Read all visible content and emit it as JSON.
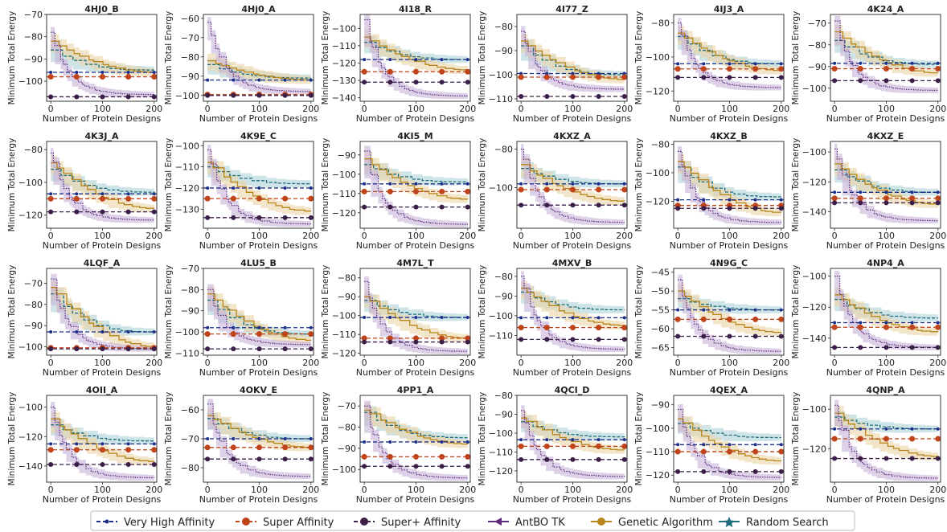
{
  "figure": {
    "xlabel": "Number of Protein Designs",
    "ylabel": "Minimum Total Energy",
    "xticks": [
      0,
      100,
      200
    ],
    "xlim": [
      -8,
      205
    ],
    "colors": {
      "very_high": "#1a2f8a",
      "super": "#c0441b",
      "super_plus": "#3b1f48",
      "antbo": "#5e2a7e",
      "antbo_band": "#c7b3d9",
      "ga": "#b8861b",
      "ga_band": "#e9d3a6",
      "rs": "#1f6d7a",
      "rs_band": "#a7cdd3"
    },
    "legend": [
      {
        "label": "Very High Affinity",
        "key": "very_high",
        "style": "dash-dot"
      },
      {
        "label": "Super Affinity",
        "key": "super",
        "style": "dash-circle"
      },
      {
        "label": "Super+ Affinity",
        "key": "super_plus",
        "style": "dash-hex"
      },
      {
        "label": "AntBO TK",
        "key": "antbo",
        "style": "tri"
      },
      {
        "label": "Genetic Algorithm",
        "key": "ga",
        "style": "circle"
      },
      {
        "label": "Random Search",
        "key": "rs",
        "style": "star"
      }
    ]
  },
  "chart_data": [
    {
      "type": "line",
      "title": "4HJ0_B",
      "ylim": [
        -109,
        -70
      ],
      "yticks": [
        -70,
        -80,
        -90,
        -100
      ],
      "very_high": -96,
      "super": -98,
      "super_plus": -107,
      "antbo": {
        "start": -78,
        "final": -106
      },
      "ga": {
        "start": -82,
        "final": -96
      },
      "rs": {
        "start": -86,
        "final": -95
      }
    },
    {
      "type": "line",
      "title": "4Hj0_A",
      "ylim": [
        -103,
        -58
      ],
      "yticks": [
        -60,
        -70,
        -80,
        -90,
        -100
      ],
      "very_high": -92,
      "super": -99.5,
      "super_plus": -100,
      "antbo": {
        "start": -62,
        "final": -98
      },
      "ga": {
        "start": -82,
        "final": -92
      },
      "rs": {
        "start": -84,
        "final": -91
      }
    },
    {
      "type": "line",
      "title": "4I18_R",
      "ylim": [
        -142,
        -92
      ],
      "yticks": [
        -100,
        -110,
        -120,
        -130,
        -140
      ],
      "very_high": -118,
      "super": -125,
      "super_plus": -131,
      "antbo": {
        "start": -95,
        "final": -139
      },
      "ga": {
        "start": -105,
        "final": -124
      },
      "rs": {
        "start": -108,
        "final": -118
      }
    },
    {
      "type": "line",
      "title": "4I77_Z",
      "ylim": [
        -111,
        -75
      ],
      "yticks": [
        -80,
        -90,
        -100,
        -110
      ],
      "very_high": -99.5,
      "super": -101,
      "super_plus": -109,
      "antbo": {
        "start": -82,
        "final": -106
      },
      "ga": {
        "start": -86,
        "final": -102
      },
      "rs": {
        "start": -88,
        "final": -100
      }
    },
    {
      "type": "line",
      "title": "4IJ3_A",
      "ylim": [
        -126,
        -75
      ],
      "yticks": [
        -80,
        -100,
        -120
      ],
      "very_high": -104,
      "super": -107,
      "super_plus": -112,
      "antbo": {
        "start": -80,
        "final": -118
      },
      "ga": {
        "start": -86,
        "final": -108
      },
      "rs": {
        "start": -88,
        "final": -104
      }
    },
    {
      "type": "line",
      "title": "4K24_A",
      "ylim": [
        -106,
        -66
      ],
      "yticks": [
        -70,
        -80,
        -90,
        -100
      ],
      "very_high": -88.5,
      "super": -91,
      "super_plus": -96.5,
      "antbo": {
        "start": -69,
        "final": -101
      },
      "ga": {
        "start": -74,
        "final": -93
      },
      "rs": {
        "start": -78,
        "final": -89
      }
    },
    {
      "type": "line",
      "title": "4K3J_A",
      "ylim": [
        -128,
        -75
      ],
      "yticks": [
        -80,
        -100,
        -120
      ],
      "very_high": -107,
      "super": -110,
      "super_plus": -118,
      "antbo": {
        "start": -82,
        "final": -123
      },
      "ga": {
        "start": -88,
        "final": -116
      },
      "rs": {
        "start": -92,
        "final": -106
      }
    },
    {
      "type": "line",
      "title": "4K9E_C",
      "ylim": [
        -139,
        -98
      ],
      "yticks": [
        -100,
        -110,
        -120,
        -130
      ],
      "very_high": -120,
      "super": -125,
      "super_plus": -134,
      "antbo": {
        "start": -102,
        "final": -137
      },
      "ga": {
        "start": -108,
        "final": -131
      },
      "rs": {
        "start": -110,
        "final": -118
      }
    },
    {
      "type": "line",
      "title": "4KI5_M",
      "ylim": [
        -128,
        -83
      ],
      "yticks": [
        -90,
        -100,
        -110,
        -120
      ],
      "very_high": -105,
      "super": -109,
      "super_plus": -117,
      "antbo": {
        "start": -88,
        "final": -126
      },
      "ga": {
        "start": -92,
        "final": -113
      },
      "rs": {
        "start": -95,
        "final": -104
      }
    },
    {
      "type": "line",
      "title": "4KXZ_A",
      "ylim": [
        -121,
        -76
      ],
      "yticks": [
        -80,
        -100
      ],
      "very_high": -98,
      "super": -101,
      "super_plus": -109,
      "antbo": {
        "start": -80,
        "final": -118
      },
      "ga": {
        "start": -88,
        "final": -107
      },
      "rs": {
        "start": -90,
        "final": -98
      }
    },
    {
      "type": "line",
      "title": "4KXZ_B",
      "ylim": [
        -139,
        -78
      ],
      "yticks": [
        -80,
        -100,
        -120
      ],
      "very_high": -119,
      "super": -123,
      "super_plus": -125,
      "antbo": {
        "start": -85,
        "final": -135
      },
      "ga": {
        "start": -92,
        "final": -128
      },
      "rs": {
        "start": -96,
        "final": -117
      }
    },
    {
      "type": "line",
      "title": "4KXZ_E",
      "ylim": [
        -151,
        -93
      ],
      "yticks": [
        -100,
        -120,
        -140
      ],
      "very_high": -127,
      "super": -131,
      "super_plus": -134,
      "antbo": {
        "start": -98,
        "final": -146
      },
      "ga": {
        "start": -108,
        "final": -135
      },
      "rs": {
        "start": -112,
        "final": -127
      }
    },
    {
      "type": "line",
      "title": "4LQF_A",
      "ylim": [
        -104,
        -63
      ],
      "yticks": [
        -70,
        -80,
        -90,
        -100
      ],
      "very_high": -93,
      "super": -100.5,
      "super_plus": -101,
      "antbo": {
        "start": -68,
        "final": -101
      },
      "ga": {
        "start": -72,
        "final": -100
      },
      "rs": {
        "start": -75,
        "final": -93
      }
    },
    {
      "type": "line",
      "title": "4LU5_B",
      "ylim": [
        -111,
        -70
      ],
      "yticks": [
        -70,
        -80,
        -90,
        -100,
        -110
      ],
      "very_high": -98,
      "super": -101,
      "super_plus": -108,
      "antbo": {
        "start": -80,
        "final": -106
      },
      "ga": {
        "start": -82,
        "final": -104
      },
      "rs": {
        "start": -85,
        "final": -101
      }
    },
    {
      "type": "line",
      "title": "4M7L_T",
      "ylim": [
        -121,
        -75
      ],
      "yticks": [
        -80,
        -90,
        -100,
        -110,
        -120
      ],
      "very_high": -101,
      "super": -112,
      "super_plus": -114,
      "antbo": {
        "start": -82,
        "final": -119
      },
      "ga": {
        "start": -90,
        "final": -112
      },
      "rs": {
        "start": -92,
        "final": -101
      }
    },
    {
      "type": "line",
      "title": "4MXV_B",
      "ylim": [
        -120,
        -76
      ],
      "yticks": [
        -80,
        -90,
        -100,
        -110
      ],
      "very_high": -101,
      "super": -106,
      "super_plus": -112,
      "antbo": {
        "start": -80,
        "final": -117
      },
      "ga": {
        "start": -86,
        "final": -105
      },
      "rs": {
        "start": -88,
        "final": -97
      }
    },
    {
      "type": "line",
      "title": "4N9G_C",
      "ylim": [
        -67,
        -44
      ],
      "yticks": [
        -45,
        -50,
        -55,
        -60,
        -65
      ],
      "very_high": -55,
      "super": -57.5,
      "super_plus": -62,
      "antbo": {
        "start": -47,
        "final": -66
      },
      "ga": {
        "start": -50,
        "final": -61
      },
      "rs": {
        "start": -52,
        "final": -55
      }
    },
    {
      "type": "line",
      "title": "4NP4_A",
      "ylim": [
        -151,
        -95
      ],
      "yticks": [
        -100,
        -120,
        -140
      ],
      "very_high": -130,
      "super": -133,
      "super_plus": -146,
      "antbo": {
        "start": -100,
        "final": -146
      },
      "ga": {
        "start": -112,
        "final": -136
      },
      "rs": {
        "start": -115,
        "final": -127
      }
    },
    {
      "type": "line",
      "title": "4OII_A",
      "ylim": [
        -151,
        -92
      ],
      "yticks": [
        -100,
        -120,
        -140
      ],
      "very_high": -125,
      "super": -129,
      "super_plus": -139,
      "antbo": {
        "start": -100,
        "final": -148
      },
      "ga": {
        "start": -108,
        "final": -137
      },
      "rs": {
        "start": -112,
        "final": -123
      }
    },
    {
      "type": "line",
      "title": "4OKV_E",
      "ylim": [
        -85,
        -55
      ],
      "yticks": [
        -60,
        -70,
        -80
      ],
      "very_high": -70,
      "super": -73,
      "super_plus": -77,
      "antbo": {
        "start": -58,
        "final": -83
      },
      "ga": {
        "start": -62,
        "final": -73
      },
      "rs": {
        "start": -63,
        "final": -70
      }
    },
    {
      "type": "line",
      "title": "4PP1_A",
      "ylim": [
        -106,
        -65
      ],
      "yticks": [
        -70,
        -80,
        -90,
        -100
      ],
      "very_high": -87,
      "super": -94,
      "super_plus": -98.5,
      "antbo": {
        "start": -70,
        "final": -104
      },
      "ga": {
        "start": -72,
        "final": -88
      },
      "rs": {
        "start": -73,
        "final": -85
      }
    },
    {
      "type": "line",
      "title": "4QCI_D",
      "ylim": [
        -126,
        -80
      ],
      "yticks": [
        -80,
        -90,
        -100,
        -110,
        -120
      ],
      "very_high": -103.5,
      "super": -107,
      "super_plus": -114,
      "antbo": {
        "start": -88,
        "final": -123
      },
      "ga": {
        "start": -92,
        "final": -109
      },
      "rs": {
        "start": -94,
        "final": -102
      }
    },
    {
      "type": "line",
      "title": "4QEX_A",
      "ylim": [
        -123,
        -86
      ],
      "yticks": [
        -90,
        -100,
        -110,
        -120
      ],
      "very_high": -107,
      "super": -110,
      "super_plus": -118.5,
      "antbo": {
        "start": -92,
        "final": -121
      },
      "ga": {
        "start": -96,
        "final": -114
      },
      "rs": {
        "start": -98,
        "final": -104
      }
    },
    {
      "type": "line",
      "title": "4QNP_A",
      "ylim": [
        -137,
        -93
      ],
      "yticks": [
        -100,
        -120
      ],
      "very_high": -110,
      "super": -115,
      "super_plus": -125,
      "antbo": {
        "start": -98,
        "final": -135
      },
      "ga": {
        "start": -102,
        "final": -124
      },
      "rs": {
        "start": -104,
        "final": -110
      }
    }
  ]
}
